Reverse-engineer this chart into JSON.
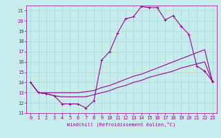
{
  "xlabel": "Windchill (Refroidissement éolien,°C)",
  "bg_color": "#c8ecec",
  "grid_color": "#a8d8d8",
  "line_color": "#990099",
  "xlim": [
    -0.5,
    23.5
  ],
  "ylim": [
    11,
    21.5
  ],
  "yticks": [
    11,
    12,
    13,
    14,
    15,
    16,
    17,
    18,
    19,
    20,
    21
  ],
  "xticks": [
    0,
    1,
    2,
    3,
    4,
    5,
    6,
    7,
    8,
    9,
    10,
    11,
    12,
    13,
    14,
    15,
    16,
    17,
    18,
    19,
    20,
    21,
    22,
    23
  ],
  "line1_x": [
    0,
    1,
    2,
    3,
    4,
    5,
    6,
    7,
    8,
    9,
    10,
    11,
    12,
    13,
    14,
    15,
    16,
    17,
    18,
    19,
    20,
    21,
    22,
    23
  ],
  "line1_y": [
    14.0,
    13.0,
    12.9,
    12.7,
    11.9,
    11.9,
    11.9,
    11.5,
    12.2,
    16.2,
    17.0,
    18.8,
    20.2,
    20.4,
    21.4,
    21.3,
    21.3,
    20.1,
    20.5,
    19.5,
    18.7,
    15.6,
    15.1,
    14.1
  ],
  "line2_x": [
    0,
    1,
    2,
    3,
    4,
    5,
    6,
    7,
    8,
    9,
    10,
    11,
    12,
    13,
    14,
    15,
    16,
    17,
    18,
    19,
    20,
    21,
    22,
    23
  ],
  "line2_y": [
    14.0,
    13.0,
    12.9,
    12.7,
    12.6,
    12.6,
    12.6,
    12.6,
    12.8,
    13.0,
    13.2,
    13.5,
    13.7,
    14.0,
    14.2,
    14.5,
    14.7,
    14.9,
    15.1,
    15.4,
    15.6,
    15.8,
    16.0,
    14.0
  ],
  "line3_x": [
    0,
    1,
    2,
    3,
    4,
    5,
    6,
    7,
    8,
    9,
    10,
    11,
    12,
    13,
    14,
    15,
    16,
    17,
    18,
    19,
    20,
    21,
    22,
    23
  ],
  "line3_y": [
    14.0,
    13.0,
    13.0,
    13.0,
    13.0,
    13.0,
    13.0,
    13.1,
    13.2,
    13.5,
    13.7,
    14.0,
    14.3,
    14.6,
    14.8,
    15.1,
    15.4,
    15.7,
    16.0,
    16.3,
    16.6,
    16.9,
    17.2,
    14.0
  ],
  "tick_fontsize": 5,
  "xlabel_fontsize": 5,
  "linewidth": 0.8,
  "markersize": 2.5
}
